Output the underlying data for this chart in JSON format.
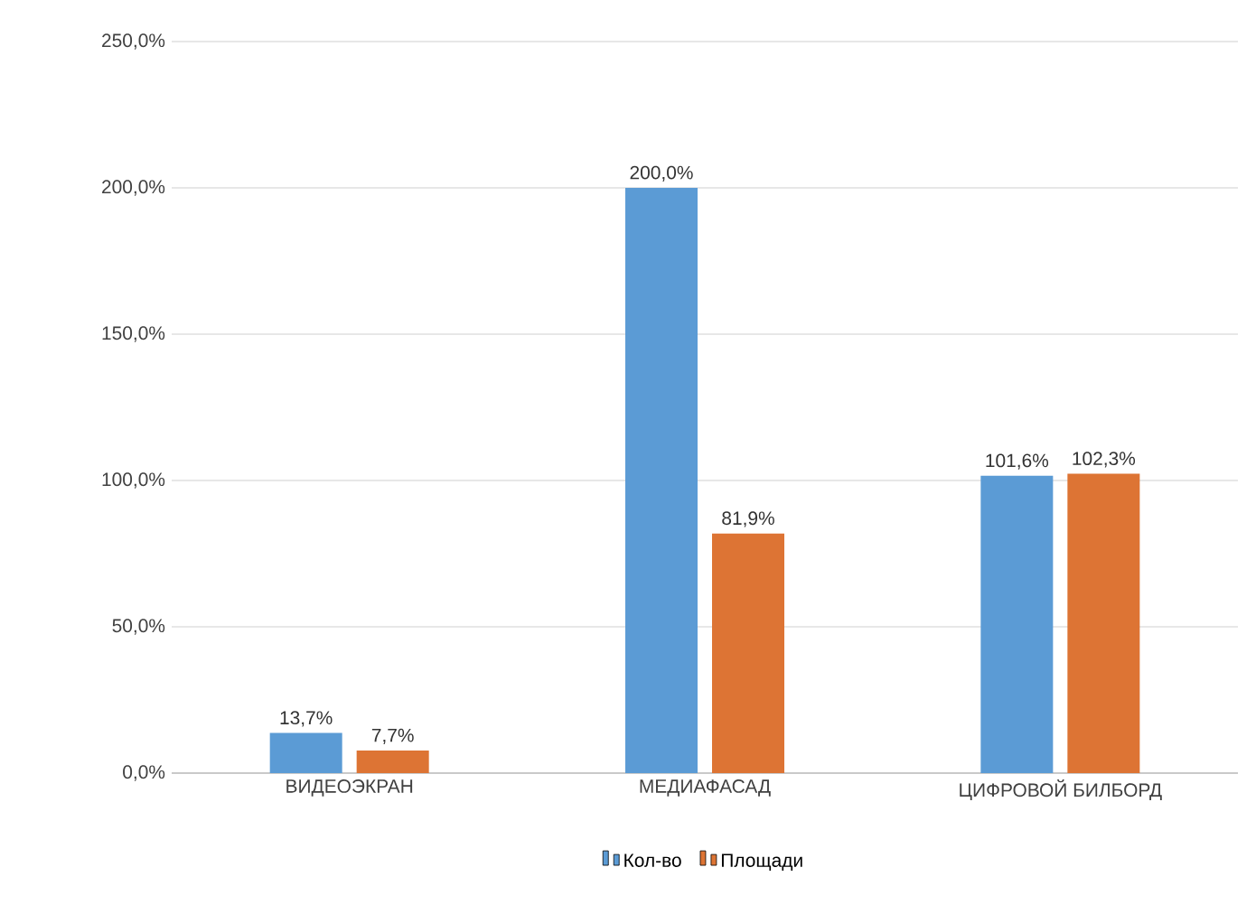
{
  "chart_data": {
    "type": "bar",
    "categories": [
      "ВИДЕОЭКРАН",
      "МЕДИАФАСАД",
      "ЦИФРОВОЙ БИЛБОРД"
    ],
    "series": [
      {
        "name": "Кол-во",
        "color": "#5b9bd5",
        "values": [
          13.7,
          200,
          101.6
        ],
        "value_labels": [
          "13,7%",
          "200,0%",
          "101,6%"
        ]
      },
      {
        "name": "Площади",
        "color": "#dd7434",
        "values": [
          7.7,
          81.9,
          102.3
        ],
        "value_labels": [
          "7,7%",
          "81,9%",
          "102,3%"
        ]
      }
    ],
    "ylim": [
      0,
      250
    ],
    "yticks": [
      {
        "value": 0,
        "label": "0,0%"
      },
      {
        "value": 50,
        "label": "50,0%"
      },
      {
        "value": 100,
        "label": "100,0%"
      },
      {
        "value": 150,
        "label": "150,0%"
      },
      {
        "value": 200,
        "label": "200,0%"
      },
      {
        "value": 250,
        "label": "250,0%"
      }
    ],
    "grid": "y",
    "legend": "bottom"
  }
}
